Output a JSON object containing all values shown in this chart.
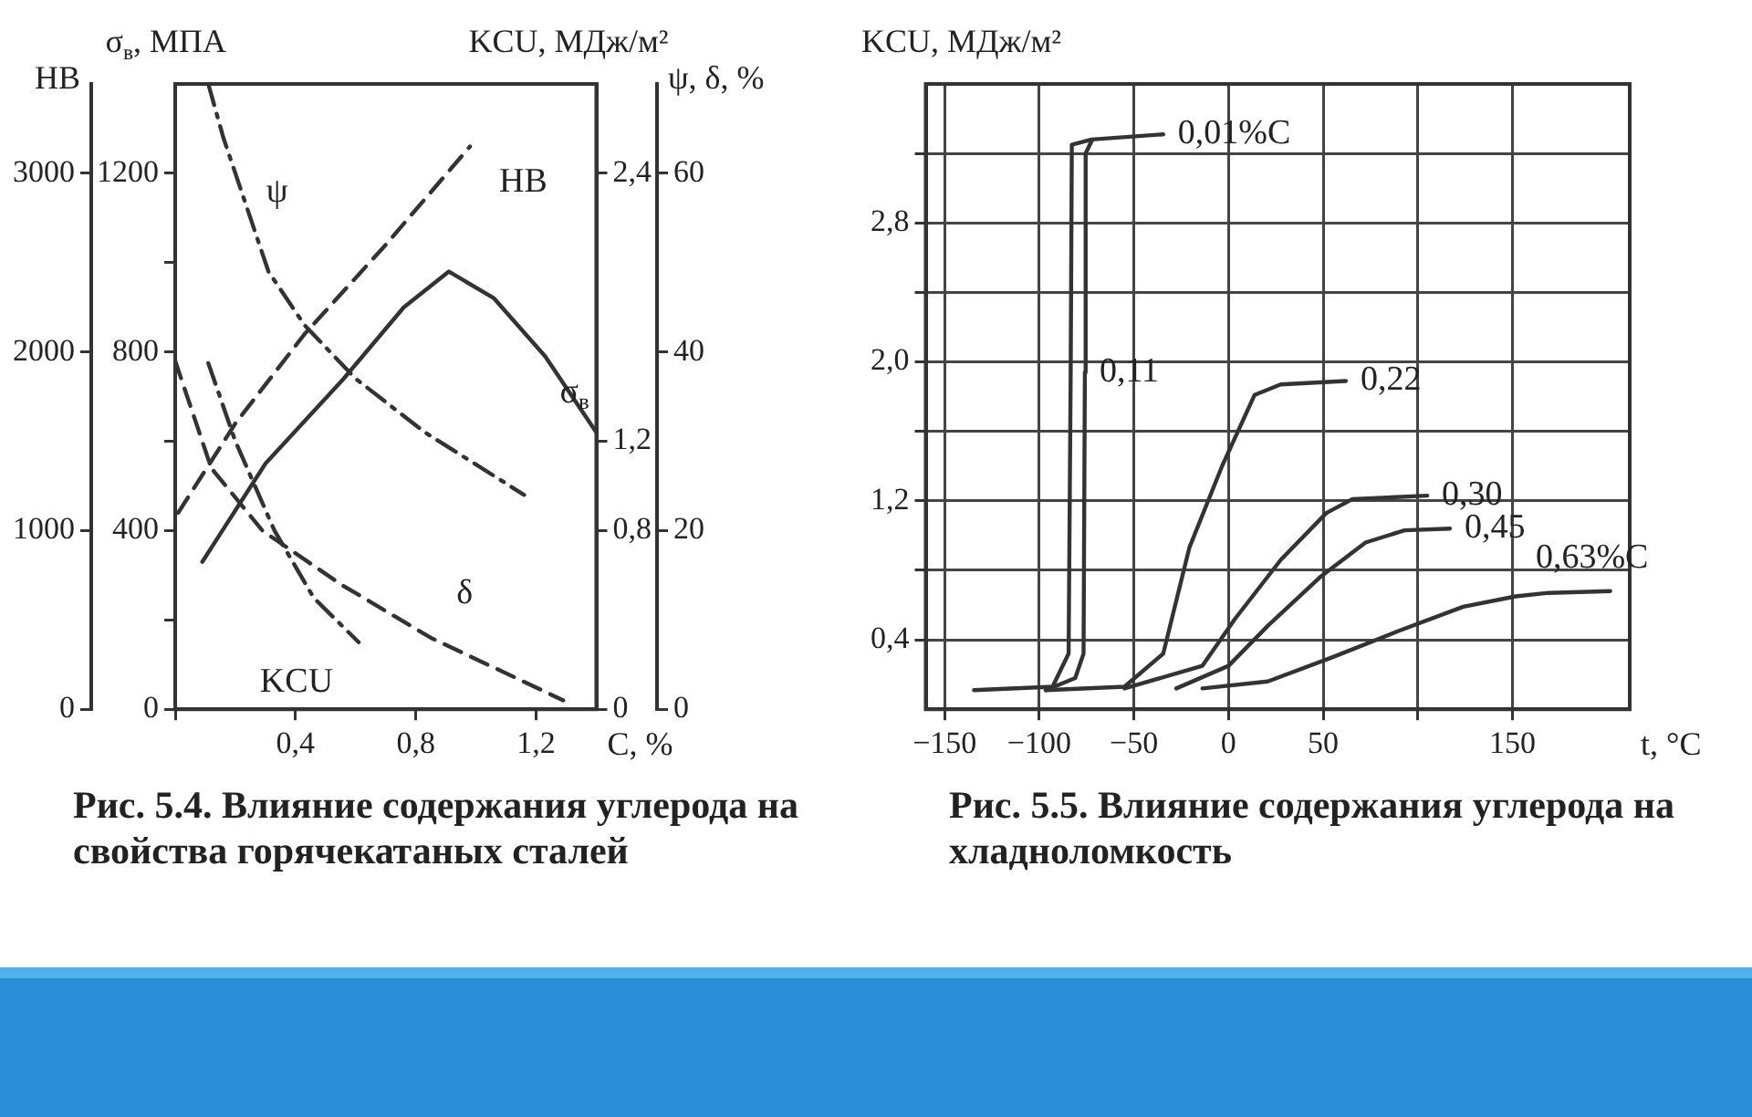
{
  "chart_data": [
    {
      "type": "line",
      "xlabel": "С, %",
      "ylabel": "σ$_{в}$, МПА",
      "y2label": "KCU, МДж/м²",
      "y3label": "НВ",
      "xlim": [
        0,
        1.4
      ],
      "xticks": [
        {
          "value": 0,
          "label": null
        },
        {
          "value": 0.4,
          "label": "0,4"
        },
        {
          "value": 0.8,
          "label": "0,8"
        },
        {
          "value": 1.2,
          "label": "1,2"
        }
      ],
      "ylim": [
        0,
        1400
      ],
      "yticks": [
        0,
        {
          "value": 200,
          "label": null
        },
        400,
        {
          "value": 600,
          "label": null
        },
        800,
        {
          "value": 1000,
          "label": null
        },
        1200
      ],
      "y2lim": [
        0,
        2.8
      ],
      "y2ticks": [
        0,
        {
          "value": 0.8,
          "label": "0,8"
        },
        {
          "value": 1.2,
          "label": "1,2"
        },
        {
          "value": 2.4,
          "label": "2,4"
        }
      ],
      "y3lim": [
        0,
        3500
      ],
      "y3ticks": [
        0,
        1000,
        2000,
        3000
      ],
      "grid": false,
      "legend": false,
      "marker": "none",
      "series": [
        {
          "name": "НВ",
          "color": "#333333",
          "axis": "y3",
          "line_style": "dashed",
          "x": [
            0.01,
            0.2,
            0.43,
            0.7,
            0.98
          ],
          "values": [
            1100,
            1600,
            2100,
            2600,
            3150
          ]
        },
        {
          "name": "σ$_{в}$",
          "color": "#333333",
          "line_style": "solid",
          "x": [
            0.09,
            0.3,
            0.56,
            0.76,
            0.91,
            1.06,
            1.23,
            1.4
          ],
          "values": [
            330,
            550,
            740,
            900,
            980,
            920,
            790,
            620
          ]
        },
        {
          "name": "KCU",
          "color": "#333333",
          "axis": "y2",
          "line_style": "dashdot",
          "x": [
            0.11,
            0.2,
            0.33,
            0.46,
            0.61
          ],
          "values": [
            1.55,
            1.2,
            0.8,
            0.5,
            0.3
          ]
        }
      ]
    },
    {
      "type": "line",
      "ylabel": "ψ, δ, %",
      "tick_labels": "y",
      "xlim": [
        0,
        1.4
      ],
      "ylim": [
        0,
        70
      ],
      "yticks": [
        0,
        20,
        40,
        60
      ],
      "grid": false,
      "legend": false,
      "marker": "none",
      "series": [
        {
          "name": "ψ",
          "color": "#333333",
          "line_style": "dashdot",
          "x": [
            0.11,
            0.16,
            0.23,
            0.31,
            0.43,
            0.6,
            0.83,
            1.16
          ],
          "values": [
            70,
            64,
            57,
            49,
            43,
            37,
            31,
            24
          ]
        },
        {
          "name": "δ",
          "color": "#333333",
          "line_style": "dashed",
          "x": [
            0,
            0.12,
            0.29,
            0.55,
            0.85,
            1.29
          ],
          "values": [
            39,
            27,
            20,
            14,
            8,
            1
          ]
        }
      ],
      "annotations": [
        "Рис. 5.4. Влияние содержания углерода на свойства горячекатаных сталей"
      ]
    },
    {
      "type": "line",
      "xlabel": "t, °C",
      "ylabel": "KCU, МДж/м²",
      "xlim": [
        -160,
        212
      ],
      "xticks": [
        {
          "value": -150,
          "label": "−150"
        },
        {
          "value": -100,
          "label": "−100"
        },
        {
          "value": -50,
          "label": "−50"
        },
        0,
        50,
        {
          "value": 100,
          "label": null
        },
        150
      ],
      "ylim": [
        0,
        3.6
      ],
      "yticks": [
        {
          "value": 0.4,
          "label": "0,4"
        },
        {
          "value": 0.8,
          "label": null
        },
        {
          "value": 1.2,
          "label": "1,2"
        },
        {
          "value": 1.6,
          "label": null
        },
        {
          "value": 2.0,
          "label": "2,0"
        },
        {
          "value": 2.4,
          "label": null
        },
        {
          "value": 2.8,
          "label": "2,8"
        },
        {
          "value": 3.2,
          "label": null
        }
      ],
      "grid": true,
      "legend": false,
      "marker": "none",
      "line_style": "solid",
      "series": [
        {
          "name": "0,01%C",
          "color": "#333333",
          "x": [
            -134.5,
            -93,
            -84.5,
            -83.4,
            -82.8,
            -72.4,
            -34.5
          ],
          "values": [
            0.11,
            0.13,
            0.32,
            1.94,
            3.25,
            3.28,
            3.31
          ]
        },
        {
          "name": "0,11",
          "color": "#333333",
          "x": [
            -96.6,
            -81,
            -76.6,
            -75.9,
            -75.5,
            -72.4
          ],
          "values": [
            0.11,
            0.18,
            0.32,
            1.94,
            3.2,
            3.27
          ]
        },
        {
          "name": "0,22",
          "color": "#333333",
          "x": [
            -96.6,
            -55,
            -34.5,
            -20.7,
            -3.4,
            13.8,
            27.6,
            62
          ],
          "values": [
            0.11,
            0.13,
            0.32,
            0.93,
            1.4,
            1.81,
            1.87,
            1.89
          ]
        },
        {
          "name": "0,30",
          "color": "#333333",
          "x": [
            -55,
            -13.8,
            3.4,
            27.6,
            51.7,
            65.5,
            105
          ],
          "values": [
            0.12,
            0.25,
            0.52,
            0.86,
            1.13,
            1.21,
            1.23
          ]
        },
        {
          "name": "0,45",
          "color": "#333333",
          "x": [
            -27.6,
            0,
            20.7,
            48.3,
            72.4,
            93,
            117
          ],
          "values": [
            0.12,
            0.25,
            0.48,
            0.76,
            0.96,
            1.03,
            1.04
          ]
        },
        {
          "name": "0,63%C",
          "color": "#333333",
          "x": [
            -13.8,
            20.7,
            55,
            89.7,
            124,
            151.7,
            169,
            201.7
          ],
          "values": [
            0.12,
            0.16,
            0.3,
            0.45,
            0.59,
            0.65,
            0.67,
            0.68
          ]
        }
      ],
      "annotations": [
        "Рис. 5.5. Влияние содержания углерода на хладноломкость"
      ]
    }
  ]
}
